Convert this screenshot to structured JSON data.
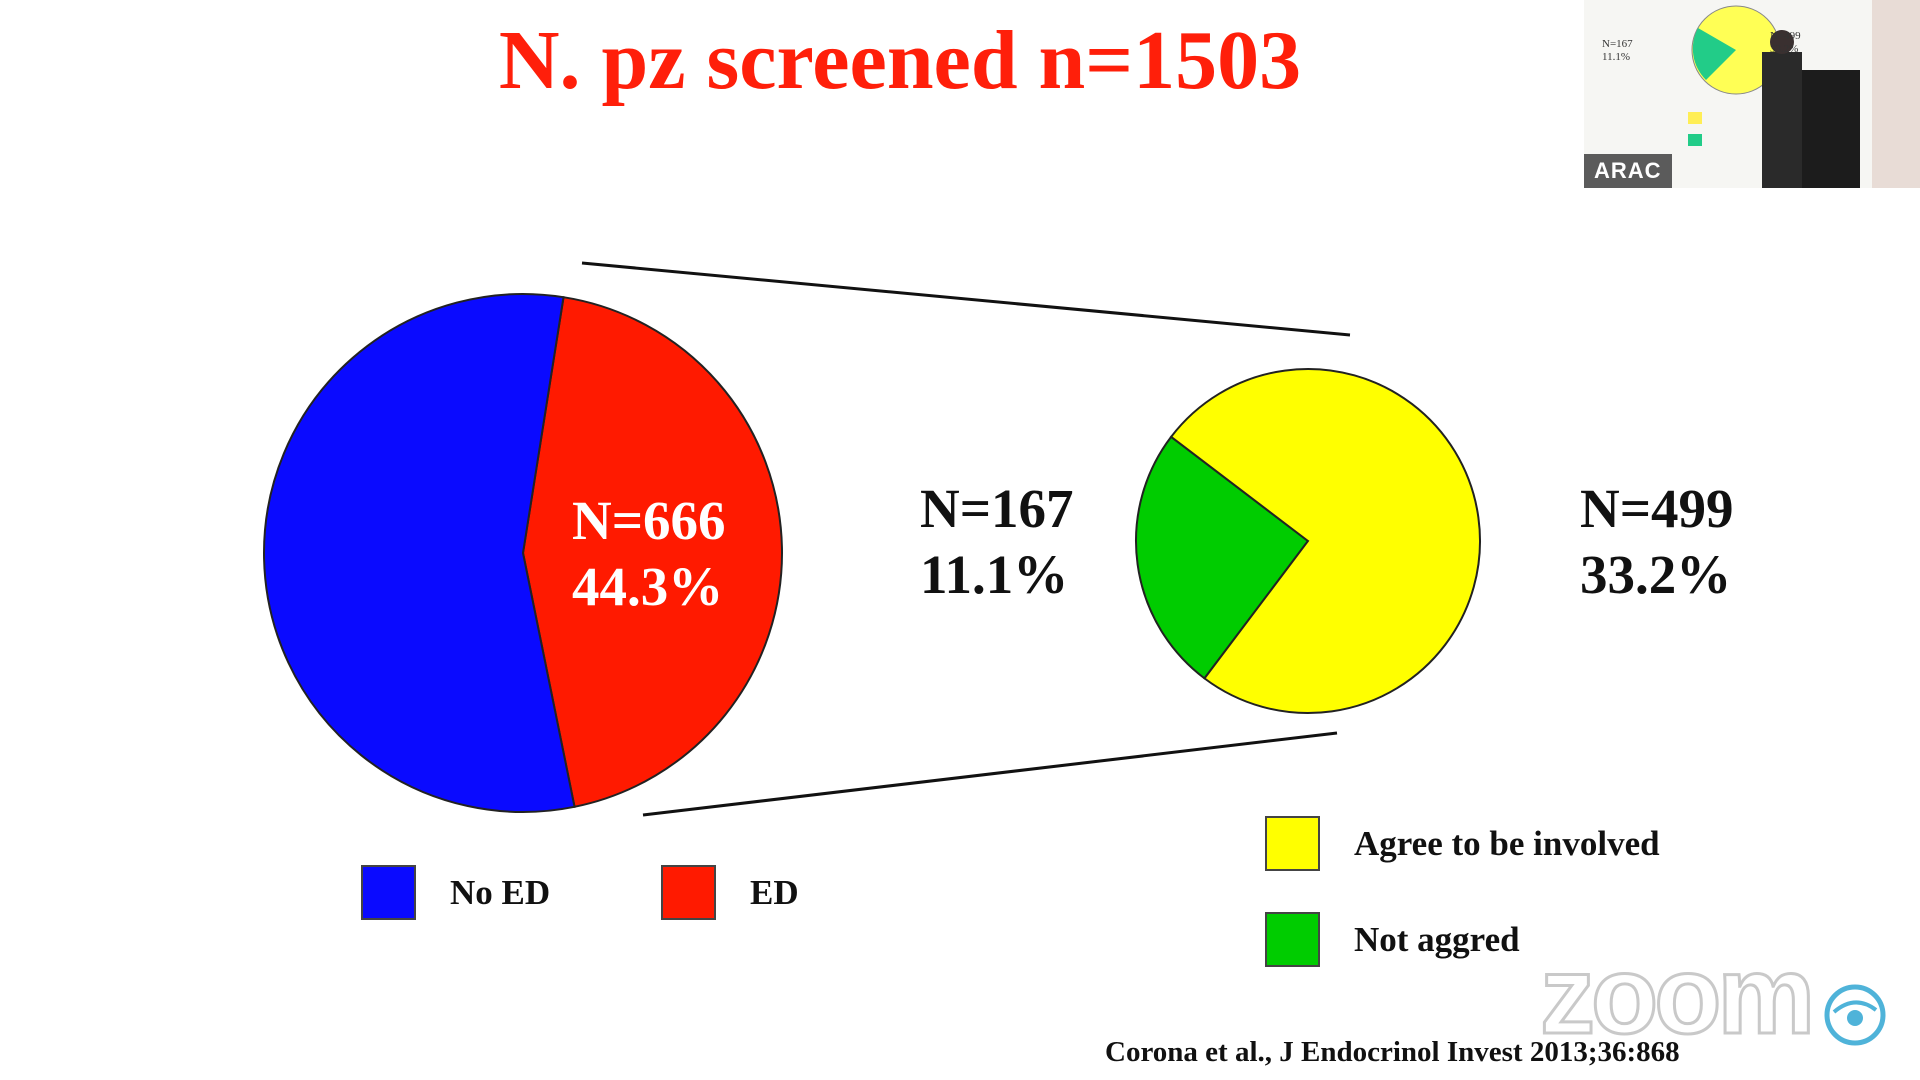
{
  "slide": {
    "title": "N. pz screened n=1503",
    "main_pie": {
      "label_n": "N=666",
      "label_pct": "44.3%"
    },
    "sub_pie": {
      "left_label_n": "N=167",
      "left_label_pct": "11.1%",
      "right_label_n": "N=499",
      "right_label_pct": "33.2%"
    },
    "legend_main": [
      {
        "label": "No ED",
        "color": "#0a0aff"
      },
      {
        "label": "ED",
        "color": "#ff1a00"
      }
    ],
    "legend_sub": [
      {
        "label": "Agree to be involved",
        "color": "#ffff00"
      },
      {
        "label": "Not aggred",
        "color": "#00cc00"
      }
    ],
    "citation": "Corona et al.,  J Endocrinol Invest 2013;36:868"
  },
  "chart_data": [
    {
      "type": "pie",
      "title": "N. pz screened n=1503",
      "categories": [
        "No ED",
        "ED"
      ],
      "values": [
        837,
        666
      ],
      "percentages": [
        55.7,
        44.3
      ],
      "colors": [
        "#0a0aff",
        "#ff1a00"
      ]
    },
    {
      "type": "pie",
      "title": "",
      "categories": [
        "Agree to be involved",
        "Not aggred"
      ],
      "values": [
        499,
        167
      ],
      "percentages": [
        33.2,
        11.1
      ],
      "colors": [
        "#ffff00",
        "#00cc00"
      ]
    }
  ],
  "overlay": {
    "thumbnail_name": "ARAC",
    "thumbnail_left_n": "N=167",
    "thumbnail_left_pct": "11.1%",
    "thumbnail_right_n": "N=499",
    "thumbnail_right_pct": "33.2%",
    "watermark": "zoom"
  }
}
